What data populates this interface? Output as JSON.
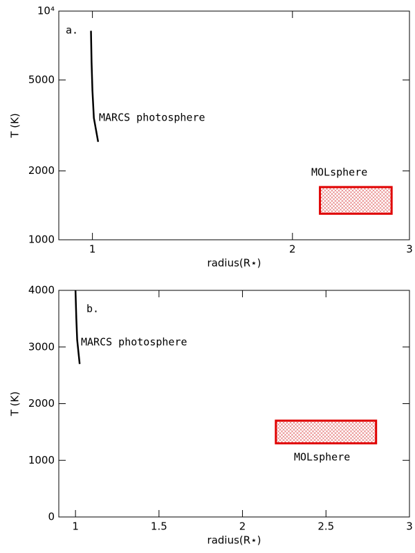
{
  "chart_data": [
    {
      "type": "line",
      "annotation": "a.",
      "xlabel": "radius(R⋆)",
      "ylabel": "T (K)",
      "xscale": "log",
      "yscale": "log",
      "xlim": [
        0.89,
        3
      ],
      "xticks": [
        1,
        2,
        3
      ],
      "ylim": [
        1000,
        10000
      ],
      "yticks": [
        1000,
        2000,
        5000,
        {
          "value": 10000,
          "label": "10⁴"
        }
      ],
      "series": [
        {
          "name": "MARCS photosphere",
          "color": "#000000",
          "x": [
            0.995,
            0.997,
            1.0,
            1.005,
            1.02
          ],
          "values": [
            8200,
            6000,
            4500,
            3410,
            2680
          ]
        }
      ],
      "regions": [
        {
          "name": "MOLsphere",
          "color": "#e00000",
          "x": [
            2.2,
            2.82
          ],
          "y": [
            1300,
            1700
          ]
        }
      ]
    },
    {
      "type": "line",
      "annotation": "b.",
      "xlabel": "radius(R⋆)",
      "ylabel": "T (K)",
      "xscale": "linear",
      "yscale": "linear",
      "xlim": [
        0.9,
        3
      ],
      "xticks": [
        1,
        1.5,
        2,
        2.5,
        3
      ],
      "ylim": [
        0,
        4000
      ],
      "yticks": [
        0,
        1000,
        2000,
        3000,
        4000
      ],
      "series": [
        {
          "name": "MARCS photosphere",
          "color": "#000000",
          "x": [
            1.0,
            1.005,
            1.01,
            1.025
          ],
          "values": [
            4000,
            3500,
            3130,
            2700
          ]
        }
      ],
      "regions": [
        {
          "name": "MOLsphere",
          "color": "#e00000",
          "x": [
            2.2,
            2.8
          ],
          "y": [
            1300,
            1700
          ]
        }
      ]
    }
  ]
}
